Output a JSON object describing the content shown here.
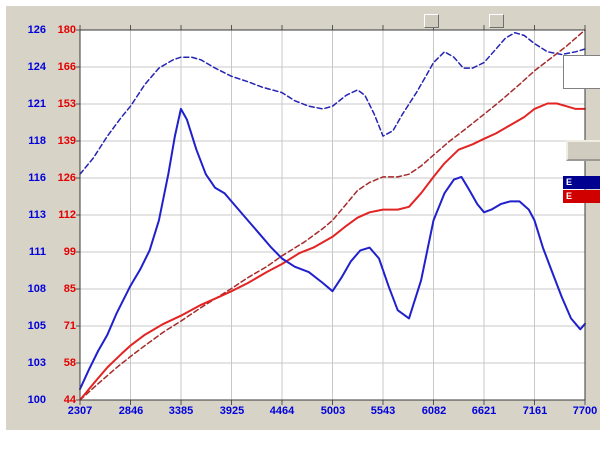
{
  "window": {
    "background": "#d7d3c7",
    "page_background": "#ffffff"
  },
  "chart": {
    "plot_bg": "#ffffff",
    "grid_color": "#c8c8c8",
    "border_color": "#3a3a3a",
    "tick_color": "#555555",
    "axis_colors": {
      "blue_axis": "#0000dd",
      "red_axis": "#e40000"
    }
  },
  "chart_data": {
    "type": "line",
    "title": "",
    "xlabel": "",
    "ylabel": "",
    "grid": true,
    "x_range": [
      2307,
      7700
    ],
    "x_ticks": [
      2307,
      2846,
      3385,
      3925,
      4464,
      5003,
      5543,
      6082,
      6621,
      7161,
      7700
    ],
    "y_axis_red": {
      "range": [
        44,
        180
      ],
      "ticks": [
        180,
        166,
        153,
        139,
        126,
        112,
        99,
        85,
        71,
        58,
        44
      ],
      "color": "#e40000"
    },
    "y_axis_blue": {
      "range": [
        100,
        126
      ],
      "ticks": [
        126,
        124,
        121,
        118,
        116,
        113,
        111,
        108,
        105,
        103,
        100
      ],
      "color": "#0000dd"
    },
    "units_note": "series values given on the red (inner-left) axis scale",
    "series": [
      {
        "name": "blue-dashed-run",
        "color": "#2424b4",
        "style": "dashed",
        "width": 1.5,
        "points": [
          [
            2307,
            127
          ],
          [
            2450,
            133
          ],
          [
            2600,
            141
          ],
          [
            2750,
            148
          ],
          [
            2846,
            152
          ],
          [
            3000,
            160
          ],
          [
            3150,
            166
          ],
          [
            3300,
            169
          ],
          [
            3385,
            170
          ],
          [
            3500,
            170
          ],
          [
            3600,
            169
          ],
          [
            3750,
            166
          ],
          [
            3925,
            163
          ],
          [
            4100,
            161
          ],
          [
            4250,
            159
          ],
          [
            4464,
            157
          ],
          [
            4600,
            154
          ],
          [
            4750,
            152
          ],
          [
            4900,
            151
          ],
          [
            5003,
            152
          ],
          [
            5150,
            156
          ],
          [
            5270,
            158
          ],
          [
            5350,
            156
          ],
          [
            5450,
            149
          ],
          [
            5543,
            141
          ],
          [
            5650,
            143
          ],
          [
            5750,
            149
          ],
          [
            5900,
            157
          ],
          [
            6000,
            163
          ],
          [
            6082,
            168
          ],
          [
            6200,
            172
          ],
          [
            6300,
            170
          ],
          [
            6400,
            166
          ],
          [
            6500,
            166
          ],
          [
            6621,
            168
          ],
          [
            6750,
            173
          ],
          [
            6850,
            177
          ],
          [
            6950,
            179
          ],
          [
            7050,
            178
          ],
          [
            7161,
            175
          ],
          [
            7300,
            172
          ],
          [
            7450,
            171
          ],
          [
            7600,
            172
          ],
          [
            7700,
            173
          ]
        ]
      },
      {
        "name": "dark-red-dashed-run",
        "color": "#a62a2a",
        "style": "dashed",
        "width": 1.5,
        "points": [
          [
            2307,
            44
          ],
          [
            2500,
            50
          ],
          [
            2700,
            56
          ],
          [
            2846,
            60
          ],
          [
            3000,
            64
          ],
          [
            3200,
            69
          ],
          [
            3385,
            73
          ],
          [
            3600,
            78
          ],
          [
            3925,
            85
          ],
          [
            4100,
            89
          ],
          [
            4300,
            93
          ],
          [
            4464,
            97
          ],
          [
            4700,
            102
          ],
          [
            4900,
            107
          ],
          [
            5003,
            110
          ],
          [
            5150,
            116
          ],
          [
            5270,
            121
          ],
          [
            5400,
            124
          ],
          [
            5543,
            126
          ],
          [
            5700,
            126
          ],
          [
            5820,
            127
          ],
          [
            5950,
            130
          ],
          [
            6082,
            134
          ],
          [
            6250,
            139
          ],
          [
            6400,
            143
          ],
          [
            6621,
            149
          ],
          [
            6800,
            154
          ],
          [
            7000,
            160
          ],
          [
            7161,
            165
          ],
          [
            7350,
            170
          ],
          [
            7500,
            174
          ],
          [
            7600,
            177
          ],
          [
            7700,
            180
          ]
        ]
      },
      {
        "name": "red-solid-run",
        "color": "#e22424",
        "style": "solid",
        "width": 2,
        "points": [
          [
            2307,
            44
          ],
          [
            2450,
            50
          ],
          [
            2600,
            56
          ],
          [
            2750,
            61
          ],
          [
            2846,
            64
          ],
          [
            3000,
            68
          ],
          [
            3200,
            72
          ],
          [
            3385,
            75
          ],
          [
            3600,
            79
          ],
          [
            3800,
            82
          ],
          [
            3925,
            84
          ],
          [
            4100,
            87
          ],
          [
            4300,
            91
          ],
          [
            4464,
            94
          ],
          [
            4650,
            98
          ],
          [
            4800,
            100
          ],
          [
            5003,
            104
          ],
          [
            5150,
            108
          ],
          [
            5270,
            111
          ],
          [
            5400,
            113
          ],
          [
            5543,
            114
          ],
          [
            5700,
            114
          ],
          [
            5820,
            115
          ],
          [
            5950,
            120
          ],
          [
            6082,
            126
          ],
          [
            6200,
            131
          ],
          [
            6350,
            136
          ],
          [
            6500,
            138
          ],
          [
            6621,
            140
          ],
          [
            6750,
            142
          ],
          [
            6900,
            145
          ],
          [
            7050,
            148
          ],
          [
            7161,
            151
          ],
          [
            7300,
            153
          ],
          [
            7400,
            153
          ],
          [
            7500,
            152
          ],
          [
            7600,
            151
          ],
          [
            7700,
            151
          ]
        ]
      },
      {
        "name": "blue-solid-run",
        "color": "#2020cc",
        "style": "solid",
        "width": 2,
        "points": [
          [
            2307,
            48
          ],
          [
            2400,
            55
          ],
          [
            2500,
            62
          ],
          [
            2600,
            68
          ],
          [
            2700,
            76
          ],
          [
            2846,
            86
          ],
          [
            2950,
            92
          ],
          [
            3050,
            99
          ],
          [
            3150,
            110
          ],
          [
            3250,
            127
          ],
          [
            3320,
            141
          ],
          [
            3385,
            151
          ],
          [
            3450,
            147
          ],
          [
            3550,
            136
          ],
          [
            3650,
            127
          ],
          [
            3750,
            122
          ],
          [
            3850,
            120
          ],
          [
            3925,
            117
          ],
          [
            4050,
            112
          ],
          [
            4200,
            106
          ],
          [
            4350,
            100
          ],
          [
            4464,
            96
          ],
          [
            4600,
            93
          ],
          [
            4750,
            91
          ],
          [
            4900,
            87
          ],
          [
            5003,
            84
          ],
          [
            5100,
            89
          ],
          [
            5200,
            95
          ],
          [
            5300,
            99
          ],
          [
            5400,
            100
          ],
          [
            5500,
            96
          ],
          [
            5600,
            86
          ],
          [
            5700,
            77
          ],
          [
            5820,
            74
          ],
          [
            5950,
            88
          ],
          [
            6082,
            110
          ],
          [
            6200,
            120
          ],
          [
            6300,
            125
          ],
          [
            6380,
            126
          ],
          [
            6450,
            122
          ],
          [
            6550,
            116
          ],
          [
            6621,
            113
          ],
          [
            6700,
            114
          ],
          [
            6800,
            116
          ],
          [
            6900,
            117
          ],
          [
            7000,
            117
          ],
          [
            7100,
            114
          ],
          [
            7161,
            110
          ],
          [
            7250,
            100
          ],
          [
            7350,
            91
          ],
          [
            7450,
            82
          ],
          [
            7550,
            74
          ],
          [
            7650,
            70
          ],
          [
            7700,
            72
          ]
        ]
      }
    ]
  },
  "side_panel": {
    "legend": [
      {
        "label": "E",
        "bg": "#000090",
        "fg": "#ffffff"
      },
      {
        "label": "E",
        "bg": "#d00000",
        "fg": "#ffffff"
      }
    ]
  }
}
